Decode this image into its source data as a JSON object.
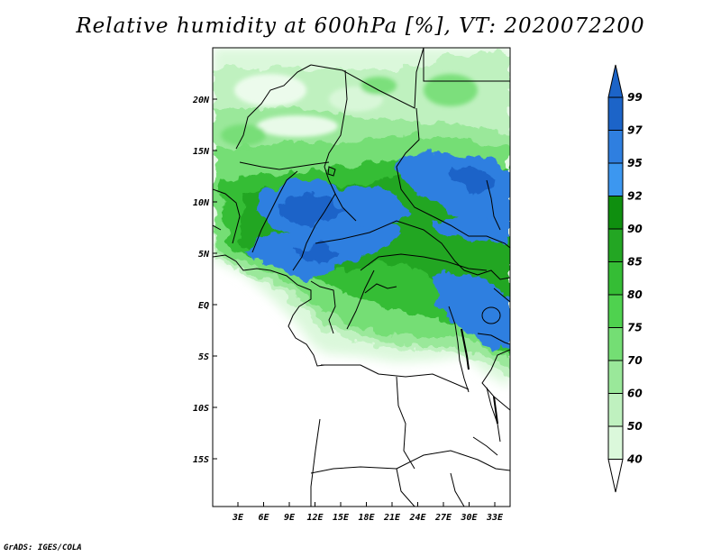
{
  "title": "Relative humidity at 600hPa [%], VT: 2020072200",
  "credit": "GrADS: IGES/COLA",
  "map": {
    "lat_ticks": [
      "20N",
      "15N",
      "10N",
      "5N",
      "EQ",
      "5S",
      "10S",
      "15S"
    ],
    "lon_ticks": [
      "3E",
      "6E",
      "9E",
      "12E",
      "15E",
      "18E",
      "21E",
      "24E",
      "27E",
      "30E",
      "33E"
    ]
  },
  "colorbar": {
    "labels": [
      "99",
      "97",
      "95",
      "92",
      "90",
      "85",
      "80",
      "75",
      "70",
      "60",
      "50",
      "40"
    ],
    "colors": [
      "#1c64c8",
      "#2f7fe0",
      "#3c97f0",
      "#0f8f0f",
      "#23a623",
      "#35bd35",
      "#4fd24f",
      "#74de74",
      "#9ae89a",
      "#bff1bf",
      "#dbf8db",
      "#f1fdf1"
    ]
  },
  "chart_data": {
    "type": "heatmap",
    "title": "Relative humidity at 600hPa [%], VT: 2020072200",
    "xlabel": "",
    "ylabel": "",
    "x_ticks": [
      "3E",
      "6E",
      "9E",
      "12E",
      "15E",
      "18E",
      "21E",
      "24E",
      "27E",
      "30E",
      "33E"
    ],
    "y_ticks": [
      "20N",
      "15N",
      "10N",
      "5N",
      "EQ",
      "5S",
      "10S",
      "15S"
    ],
    "levels": [
      40,
      50,
      60,
      70,
      75,
      80,
      85,
      90,
      92,
      95,
      97,
      99
    ]
  }
}
